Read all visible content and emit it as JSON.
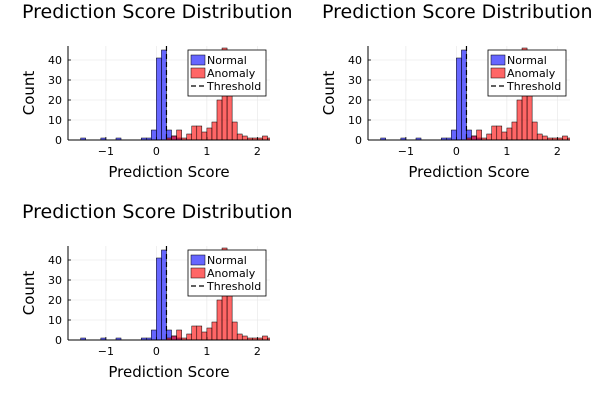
{
  "chart_data": [
    {
      "type": "bar",
      "title": "Prediction Score Distribution",
      "xlabel": "Prediction Score",
      "ylabel": "Count",
      "xlim": [
        -1.75,
        2.25
      ],
      "ylim": [
        0,
        47
      ],
      "xticks": [
        "-1",
        "0",
        "1",
        "2"
      ],
      "yticks": [
        "0",
        "10",
        "20",
        "30",
        "40"
      ],
      "grid": true,
      "legend_position": "top-right",
      "threshold": 0.2,
      "bin_width": 0.1,
      "legend": [
        "Normal",
        "Anomaly",
        "Threshold"
      ],
      "series": [
        {
          "name": "Normal",
          "color": "#0000ff",
          "bins": [
            {
              "x": -1.45,
              "y": 1
            },
            {
              "x": -1.05,
              "y": 1
            },
            {
              "x": -0.75,
              "y": 1
            },
            {
              "x": -0.25,
              "y": 1
            },
            {
              "x": -0.15,
              "y": 1
            },
            {
              "x": -0.05,
              "y": 5
            },
            {
              "x": 0.05,
              "y": 41
            },
            {
              "x": 0.15,
              "y": 45
            },
            {
              "x": 0.25,
              "y": 5
            },
            {
              "x": 0.35,
              "y": 2
            },
            {
              "x": 0.45,
              "y": 1
            }
          ]
        },
        {
          "name": "Anomaly",
          "color": "#ff0000",
          "bins": [
            {
              "x": 0.25,
              "y": 1
            },
            {
              "x": 0.35,
              "y": 2
            },
            {
              "x": 0.45,
              "y": 5
            },
            {
              "x": 0.55,
              "y": 1
            },
            {
              "x": 0.65,
              "y": 3
            },
            {
              "x": 0.75,
              "y": 7
            },
            {
              "x": 0.85,
              "y": 7
            },
            {
              "x": 0.95,
              "y": 4
            },
            {
              "x": 1.05,
              "y": 6
            },
            {
              "x": 1.15,
              "y": 9
            },
            {
              "x": 1.25,
              "y": 20
            },
            {
              "x": 1.35,
              "y": 46
            },
            {
              "x": 1.45,
              "y": 28
            },
            {
              "x": 1.55,
              "y": 9
            },
            {
              "x": 1.65,
              "y": 3
            },
            {
              "x": 1.75,
              "y": 2
            },
            {
              "x": 1.85,
              "y": 1
            },
            {
              "x": 1.95,
              "y": 1
            },
            {
              "x": 2.05,
              "y": 1
            },
            {
              "x": 2.15,
              "y": 2
            },
            {
              "x": 2.25,
              "y": 1
            },
            {
              "x": 2.35,
              "y": 1
            }
          ]
        }
      ]
    },
    {
      "type": "bar",
      "title": "Prediction Score Distribution",
      "xlabel": "Prediction Score",
      "ylabel": "Count",
      "xlim": [
        -1.75,
        2.25
      ],
      "ylim": [
        0,
        47
      ],
      "xticks": [
        "-1",
        "0",
        "1",
        "2"
      ],
      "yticks": [
        "0",
        "10",
        "20",
        "30",
        "40"
      ],
      "grid": true,
      "legend_position": "top-right",
      "threshold": 0.2,
      "bin_width": 0.1,
      "legend": [
        "Normal",
        "Anomaly",
        "Threshold"
      ],
      "series": [
        {
          "name": "Normal",
          "color": "#0000ff",
          "bins": [
            {
              "x": -1.45,
              "y": 1
            },
            {
              "x": -1.05,
              "y": 1
            },
            {
              "x": -0.75,
              "y": 1
            },
            {
              "x": -0.25,
              "y": 1
            },
            {
              "x": -0.15,
              "y": 1
            },
            {
              "x": -0.05,
              "y": 5
            },
            {
              "x": 0.05,
              "y": 41
            },
            {
              "x": 0.15,
              "y": 45
            },
            {
              "x": 0.25,
              "y": 5
            },
            {
              "x": 0.35,
              "y": 2
            },
            {
              "x": 0.45,
              "y": 1
            }
          ]
        },
        {
          "name": "Anomaly",
          "color": "#ff0000",
          "bins": [
            {
              "x": 0.25,
              "y": 1
            },
            {
              "x": 0.35,
              "y": 2
            },
            {
              "x": 0.45,
              "y": 5
            },
            {
              "x": 0.55,
              "y": 1
            },
            {
              "x": 0.65,
              "y": 3
            },
            {
              "x": 0.75,
              "y": 7
            },
            {
              "x": 0.85,
              "y": 7
            },
            {
              "x": 0.95,
              "y": 4
            },
            {
              "x": 1.05,
              "y": 6
            },
            {
              "x": 1.15,
              "y": 9
            },
            {
              "x": 1.25,
              "y": 20
            },
            {
              "x": 1.35,
              "y": 46
            },
            {
              "x": 1.45,
              "y": 28
            },
            {
              "x": 1.55,
              "y": 9
            },
            {
              "x": 1.65,
              "y": 3
            },
            {
              "x": 1.75,
              "y": 2
            },
            {
              "x": 1.85,
              "y": 1
            },
            {
              "x": 1.95,
              "y": 1
            },
            {
              "x": 2.05,
              "y": 1
            },
            {
              "x": 2.15,
              "y": 2
            },
            {
              "x": 2.25,
              "y": 1
            },
            {
              "x": 2.35,
              "y": 1
            }
          ]
        }
      ]
    },
    {
      "type": "bar",
      "title": "Prediction Score Distribution",
      "xlabel": "Prediction Score",
      "ylabel": "Count",
      "xlim": [
        -1.75,
        2.25
      ],
      "ylim": [
        0,
        47
      ],
      "xticks": [
        "-1",
        "0",
        "1",
        "2"
      ],
      "yticks": [
        "0",
        "10",
        "20",
        "30",
        "40"
      ],
      "grid": true,
      "legend_position": "top-right",
      "threshold": 0.2,
      "bin_width": 0.1,
      "legend": [
        "Normal",
        "Anomaly",
        "Threshold"
      ],
      "series": [
        {
          "name": "Normal",
          "color": "#0000ff",
          "bins": [
            {
              "x": -1.45,
              "y": 1
            },
            {
              "x": -1.05,
              "y": 1
            },
            {
              "x": -0.75,
              "y": 1
            },
            {
              "x": -0.25,
              "y": 1
            },
            {
              "x": -0.15,
              "y": 1
            },
            {
              "x": -0.05,
              "y": 5
            },
            {
              "x": 0.05,
              "y": 41
            },
            {
              "x": 0.15,
              "y": 45
            },
            {
              "x": 0.25,
              "y": 5
            },
            {
              "x": 0.35,
              "y": 2
            },
            {
              "x": 0.45,
              "y": 1
            }
          ]
        },
        {
          "name": "Anomaly",
          "color": "#ff0000",
          "bins": [
            {
              "x": 0.25,
              "y": 1
            },
            {
              "x": 0.35,
              "y": 2
            },
            {
              "x": 0.45,
              "y": 5
            },
            {
              "x": 0.55,
              "y": 1
            },
            {
              "x": 0.65,
              "y": 3
            },
            {
              "x": 0.75,
              "y": 7
            },
            {
              "x": 0.85,
              "y": 7
            },
            {
              "x": 0.95,
              "y": 4
            },
            {
              "x": 1.05,
              "y": 6
            },
            {
              "x": 1.15,
              "y": 9
            },
            {
              "x": 1.25,
              "y": 20
            },
            {
              "x": 1.35,
              "y": 46
            },
            {
              "x": 1.45,
              "y": 28
            },
            {
              "x": 1.55,
              "y": 9
            },
            {
              "x": 1.65,
              "y": 3
            },
            {
              "x": 1.75,
              "y": 2
            },
            {
              "x": 1.85,
              "y": 1
            },
            {
              "x": 1.95,
              "y": 1
            },
            {
              "x": 2.05,
              "y": 1
            },
            {
              "x": 2.15,
              "y": 2
            },
            {
              "x": 2.25,
              "y": 1
            },
            {
              "x": 2.35,
              "y": 1
            }
          ]
        }
      ]
    }
  ]
}
